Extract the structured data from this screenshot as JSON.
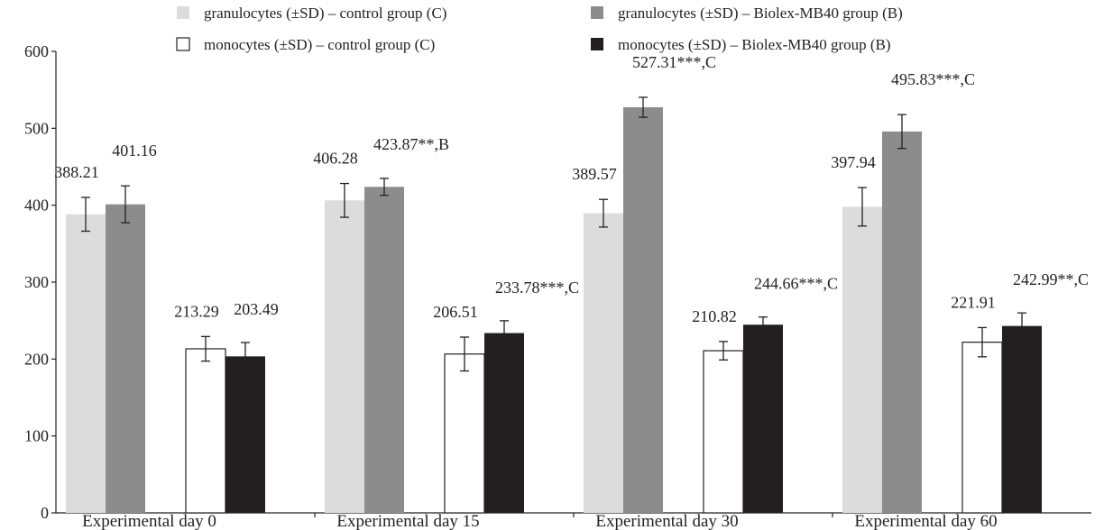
{
  "chart_data": {
    "type": "bar",
    "title": "",
    "xlabel": "",
    "ylabel": "",
    "ylim": [
      0,
      600
    ],
    "yticks": [
      0,
      100,
      200,
      300,
      400,
      500,
      600
    ],
    "grid": false,
    "legend_position": "top",
    "categories": [
      "Experimental day 0",
      "Experimental day 15",
      "Experimental day 30",
      "Experimental day 60"
    ],
    "series": [
      {
        "name": "granulocytes (±SD) –  control group (C)",
        "color": "#dcdcdc",
        "values": [
          388.21,
          406.28,
          389.57,
          397.94
        ],
        "sd": [
          22,
          22,
          18,
          25
        ],
        "labels": [
          "388.21",
          "406.28",
          "389.57",
          "397.94"
        ]
      },
      {
        "name": "granulocytes (±SD) –  Biolex-MB40 group (B)",
        "color": "#8c8c8c",
        "values": [
          401.16,
          423.87,
          527.31,
          495.83
        ],
        "sd": [
          24,
          11,
          13,
          22
        ],
        "labels": [
          "401.16",
          "423.87**,B",
          "527.31***,C",
          "495.83***,C"
        ]
      },
      {
        "name": "monocytes (±SD) –  control group (C)",
        "color": "#ffffff",
        "values": [
          213.29,
          206.51,
          210.82,
          221.91
        ],
        "sd": [
          16,
          22,
          12,
          19
        ],
        "labels": [
          "213.29",
          "206.51",
          "210.82",
          "221.91"
        ]
      },
      {
        "name": "monocytes (±SD) –  Biolex-MB40 group (B)",
        "color": "#231f20",
        "values": [
          203.49,
          233.78,
          244.66,
          242.99
        ],
        "sd": [
          18,
          16,
          10,
          17
        ],
        "labels": [
          "203.49",
          "233.78***,C",
          "244.66***,C",
          "242.99**,C"
        ]
      }
    ]
  }
}
